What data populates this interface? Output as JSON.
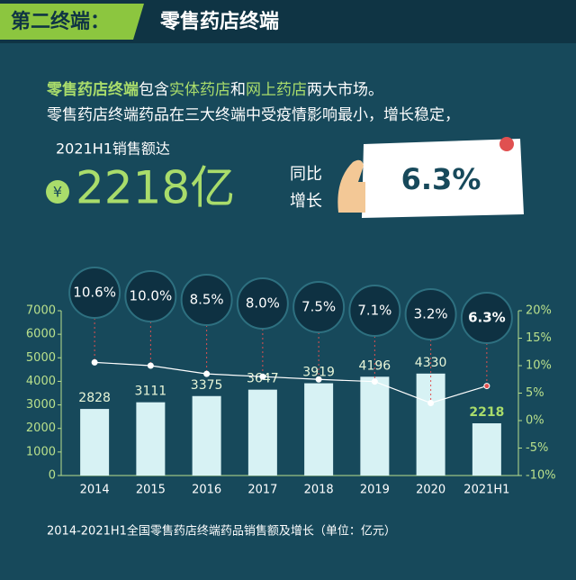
{
  "header": {
    "tag": "第二终端：",
    "title": "零售药店终端"
  },
  "intro": {
    "line1": [
      "零售药店终端",
      "包含",
      "实体药店",
      "和",
      "网上药店",
      "两大市场。"
    ],
    "line2": "零售药店终端药品在三大终端中受疫情影响最小，增长稳定，",
    "line3": "2021H1销售额达",
    "currency": "¥",
    "amount": "2218亿",
    "growth_label": [
      "同比",
      "增长"
    ],
    "growth": "6.3%"
  },
  "chart_data": {
    "type": "bar",
    "categories": [
      "2014",
      "2015",
      "2016",
      "2017",
      "2018",
      "2019",
      "2020",
      "2021H1"
    ],
    "series": [
      {
        "type": "bar",
        "color": "#d7f2f4",
        "values": [
          2828,
          3111,
          3375,
          3647,
          3919,
          4196,
          4330,
          2218
        ]
      },
      {
        "type": "line",
        "axis": "y2",
        "color": "#ffffff",
        "values": [
          10.6,
          10.0,
          8.5,
          8.0,
          7.5,
          7.1,
          3.2,
          6.3
        ],
        "value_labels": [
          "10.6%",
          "10.0%",
          "8.5%",
          "8.0%",
          "7.5%",
          "7.1%",
          "3.2%",
          "6.3%"
        ]
      }
    ],
    "ylim": [
      0,
      7000
    ],
    "yticks": [
      0,
      1000,
      2000,
      3000,
      4000,
      5000,
      6000,
      7000
    ],
    "y2lim": [
      -10,
      20
    ],
    "y2ticks": [
      {
        "value": -10,
        "label": "-10%"
      },
      {
        "value": -5,
        "label": "-5%"
      },
      {
        "value": 0,
        "label": "0%"
      },
      {
        "value": 5,
        "label": "5%"
      },
      {
        "value": 10,
        "label": "10%"
      },
      {
        "value": 15,
        "label": "15%"
      },
      {
        "value": 20,
        "label": "20%"
      }
    ],
    "caption": "2014-2021H1全国零售药店终端药品销售额及增长（单位：亿元）"
  }
}
